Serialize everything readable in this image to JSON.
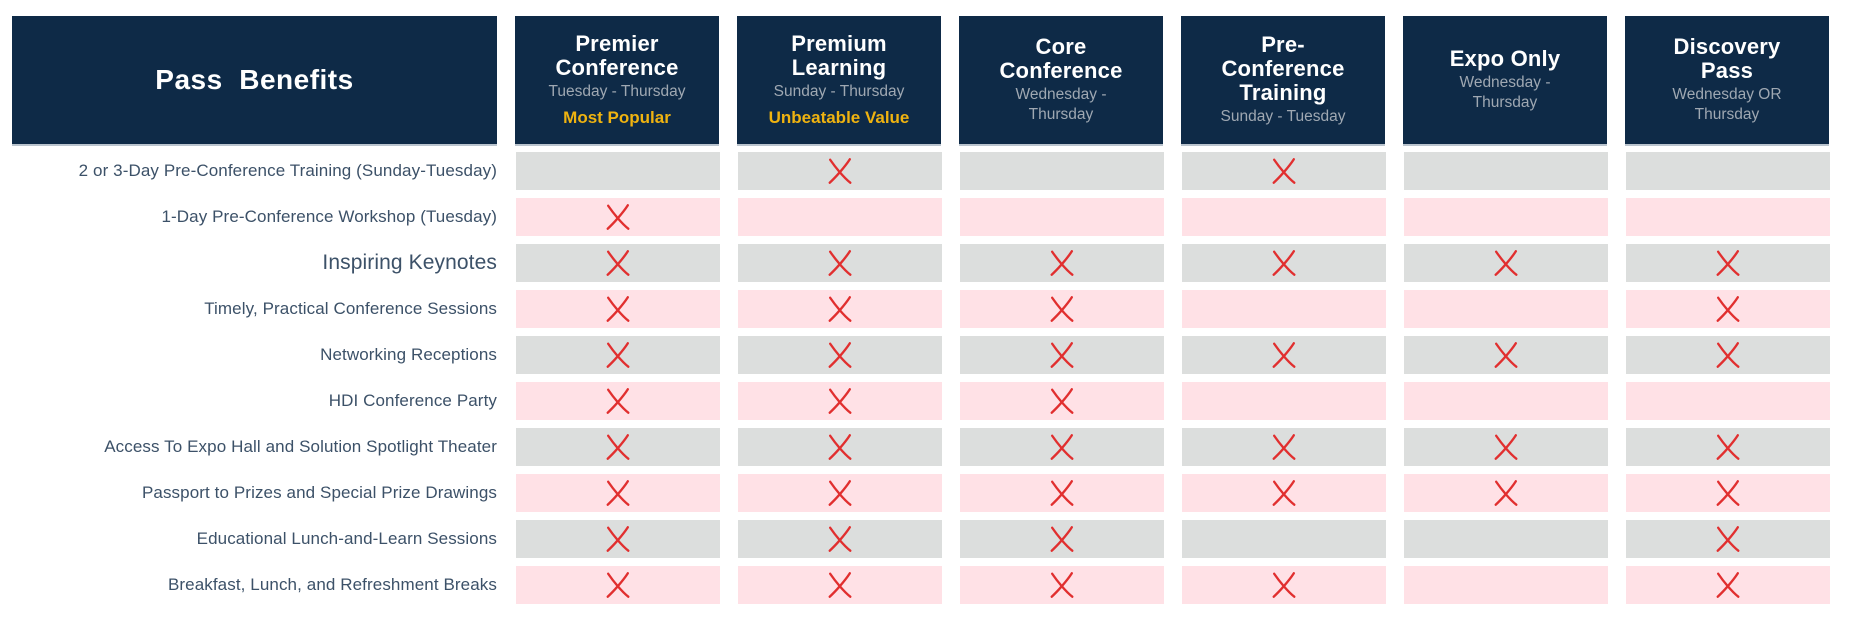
{
  "colors": {
    "navy": "#0e2a47",
    "row_gray": "#dcdedd",
    "row_pink": "#ffe1e6",
    "x_red": "#e12f2f",
    "gold": "#efb310",
    "header_subtext": "#9fa8b2",
    "row_label_text": "#3c5168"
  },
  "chart_data": {
    "type": "table",
    "title": "Pass  Benefits",
    "mark_meaning": "included",
    "columns": [
      {
        "id": "premier-conference",
        "title_lines": [
          "Premier",
          "Conference"
        ],
        "days_lines": [
          "Tuesday - Thursday"
        ],
        "badge": "Most Popular"
      },
      {
        "id": "premium-learning",
        "title_lines": [
          "Premium",
          "Learning"
        ],
        "days_lines": [
          "Sunday - Thursday"
        ],
        "badge": "Unbeatable Value"
      },
      {
        "id": "core-conference",
        "title_lines": [
          "Core",
          "Conference"
        ],
        "days_lines": [
          "Wednesday -",
          "Thursday"
        ],
        "badge": null
      },
      {
        "id": "pre-conference-training",
        "title_lines": [
          "Pre-",
          "Conference",
          "Training"
        ],
        "days_lines": [
          "Sunday - Tuesday"
        ],
        "badge": null
      },
      {
        "id": "expo-only",
        "title_lines": [
          "Expo Only"
        ],
        "days_lines": [
          "Wednesday -",
          "Thursday"
        ],
        "badge": null
      },
      {
        "id": "discovery-pass",
        "title_lines": [
          "Discovery",
          "Pass"
        ],
        "days_lines": [
          "Wednesday OR",
          "Thursday"
        ],
        "badge": null
      }
    ],
    "rows": [
      {
        "label": "2 or 3-Day Pre-Conference Training (Sunday-Tuesday)",
        "emphasis": false,
        "marks": [
          false,
          true,
          false,
          true,
          false,
          false
        ]
      },
      {
        "label": "1-Day Pre-Conference Workshop (Tuesday)",
        "emphasis": false,
        "marks": [
          true,
          false,
          false,
          false,
          false,
          false
        ]
      },
      {
        "label": "Inspiring Keynotes",
        "emphasis": true,
        "marks": [
          true,
          true,
          true,
          true,
          true,
          true
        ]
      },
      {
        "label": "Timely, Practical Conference Sessions",
        "emphasis": false,
        "marks": [
          true,
          true,
          true,
          false,
          false,
          true
        ]
      },
      {
        "label": "Networking Receptions",
        "emphasis": false,
        "marks": [
          true,
          true,
          true,
          true,
          true,
          true
        ]
      },
      {
        "label": "HDI Conference Party",
        "emphasis": false,
        "marks": [
          true,
          true,
          true,
          false,
          false,
          false
        ]
      },
      {
        "label": "Access To Expo Hall and Solution Spotlight Theater",
        "emphasis": false,
        "marks": [
          true,
          true,
          true,
          true,
          true,
          true
        ]
      },
      {
        "label": "Passport to Prizes and Special Prize Drawings",
        "emphasis": false,
        "marks": [
          true,
          true,
          true,
          true,
          true,
          true
        ]
      },
      {
        "label": "Educational Lunch-and-Learn Sessions",
        "emphasis": false,
        "marks": [
          true,
          true,
          true,
          false,
          false,
          true
        ]
      },
      {
        "label": "Breakfast, Lunch, and Refreshment Breaks",
        "emphasis": false,
        "marks": [
          true,
          true,
          true,
          true,
          false,
          true
        ]
      }
    ]
  }
}
